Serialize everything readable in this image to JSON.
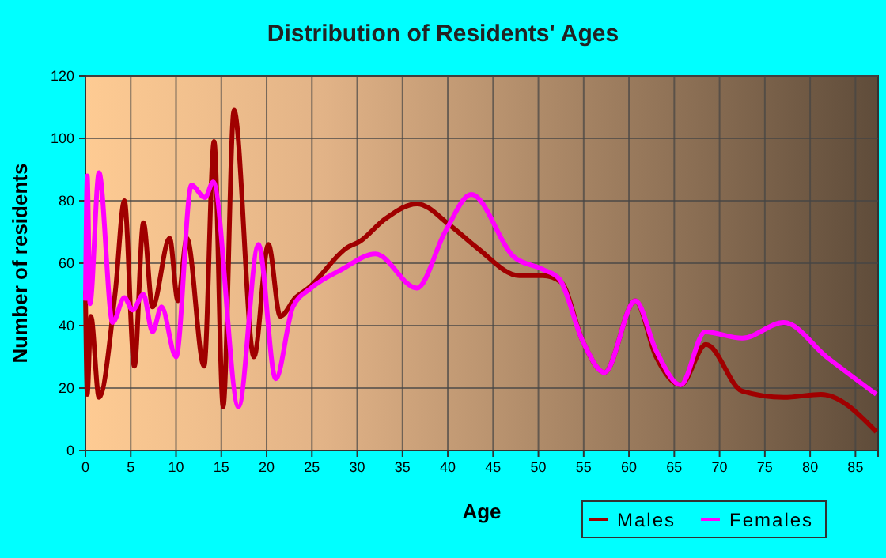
{
  "chart_data": {
    "type": "line",
    "title": "Distribution of Residents' Ages",
    "xlabel": "Age",
    "ylabel": "Number of residents",
    "xlim": [
      0,
      87.5
    ],
    "xticks": [
      0,
      5,
      10,
      15,
      20,
      25,
      30,
      35,
      40,
      45,
      50,
      55,
      60,
      65,
      70,
      75,
      80,
      85
    ],
    "ylim": [
      0,
      120
    ],
    "yticks": [
      0,
      20,
      40,
      60,
      80,
      100,
      120
    ],
    "grid": true,
    "legend": "bottom right",
    "marker": "none",
    "line_style": "solid",
    "series": [
      {
        "name": "Males",
        "color": "#a00000",
        "x": [
          0,
          0.2,
          0.6,
          1.5,
          3.3,
          4.3,
          5.4,
          6.4,
          7.4,
          9.3,
          10.2,
          11.2,
          13.1,
          14.2,
          15.2,
          16.4,
          18.6,
          20.2,
          21.5,
          23.2,
          24.6,
          28.9,
          30.3,
          33,
          36.6,
          40.3,
          43.2,
          47.9,
          50.5,
          52.5,
          54.9,
          57.3,
          60.7,
          63,
          65.7,
          68.5,
          72.5,
          77.1,
          81.2,
          87.3
        ],
        "values": [
          51,
          18,
          43,
          17,
          51,
          80,
          27,
          73,
          46,
          68,
          48,
          68,
          27,
          99,
          14,
          109,
          30,
          66,
          43,
          49,
          52,
          65,
          67,
          74,
          79,
          72,
          65,
          56,
          56,
          54,
          35,
          25,
          48,
          30,
          21,
          34,
          19,
          17,
          18,
          6
        ]
      },
      {
        "name": "Females",
        "color": "#ff00ff",
        "x": [
          0,
          0.2,
          0.5,
          1.5,
          3,
          4.3,
          5.2,
          6.4,
          7.4,
          8.4,
          10,
          11.7,
          13.2,
          14.1,
          16.9,
          19.1,
          21,
          22.9,
          24.9,
          28.3,
          32,
          36.6,
          39.7,
          42.6,
          47.3,
          50.5,
          52.3,
          54.9,
          57.3,
          60.7,
          63,
          65.7,
          68.4,
          72.5,
          77.1,
          81.8,
          87.3
        ],
        "values": [
          48,
          88,
          47,
          89,
          41,
          49,
          45,
          50,
          38,
          46,
          30,
          85,
          81,
          86,
          14,
          66,
          23,
          46,
          52,
          58,
          63,
          52,
          70,
          82,
          62,
          58,
          55,
          35,
          25,
          48,
          32,
          21,
          38,
          36,
          41,
          30,
          18
        ]
      }
    ]
  }
}
